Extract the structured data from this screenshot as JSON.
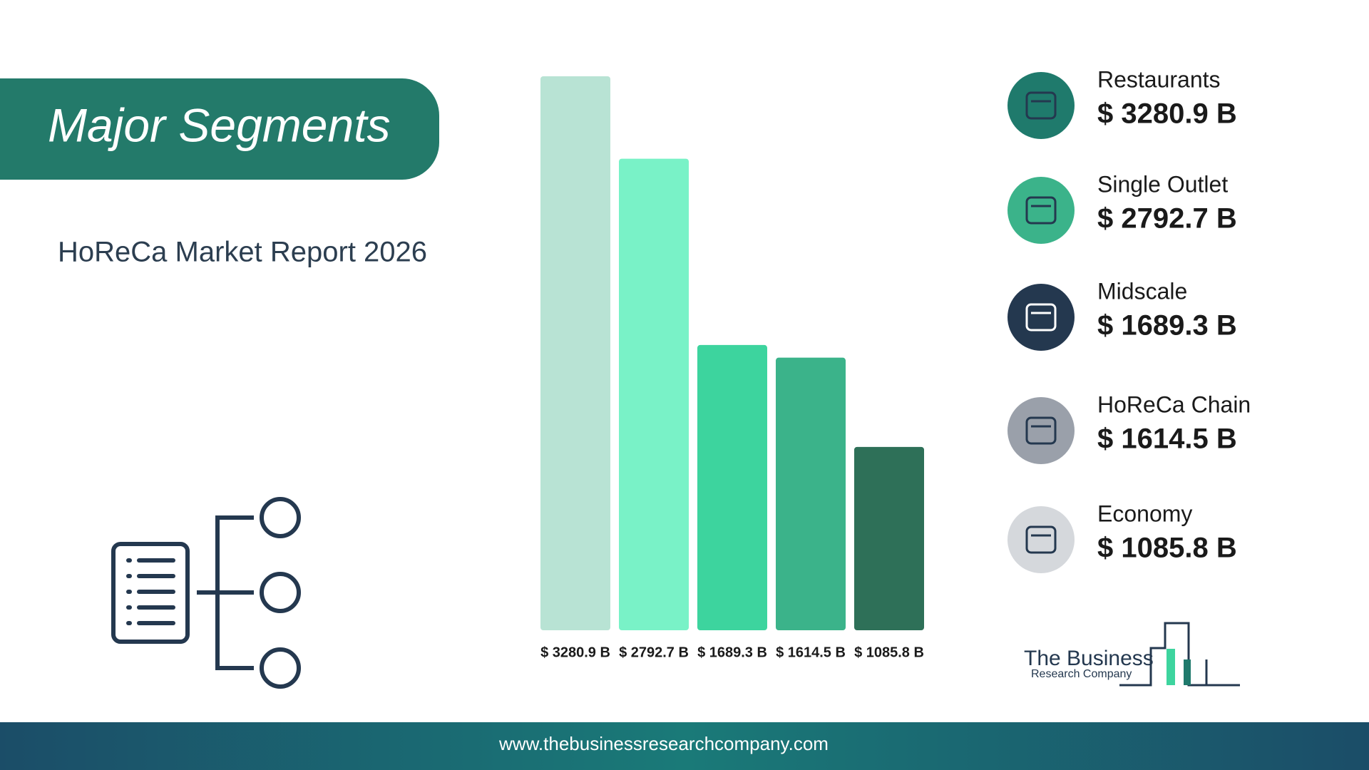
{
  "header": {
    "title": "Major Segments",
    "subtitle": "HoReCa Market Report 2026"
  },
  "chart_data": {
    "type": "bar",
    "categories": [
      "Restaurants",
      "Single Outlet",
      "Midscale",
      "HoReCa Chain",
      "Economy"
    ],
    "values": [
      3280.9,
      2792.7,
      1689.3,
      1614.5,
      1085.8
    ],
    "value_labels": [
      "$ 3280.9 B",
      "$ 2792.7 B",
      "$ 1689.3 B",
      "$ 1614.5 B",
      "$ 1085.8 B"
    ],
    "colors": [
      "#b8e3d4",
      "#79f2c7",
      "#3dd49e",
      "#3bb38a",
      "#2e7058"
    ]
  },
  "logo": {
    "name": "The Business",
    "tagline": "Research Company"
  },
  "footer": {
    "url": "www.thebusinessresearchcompany.com"
  }
}
